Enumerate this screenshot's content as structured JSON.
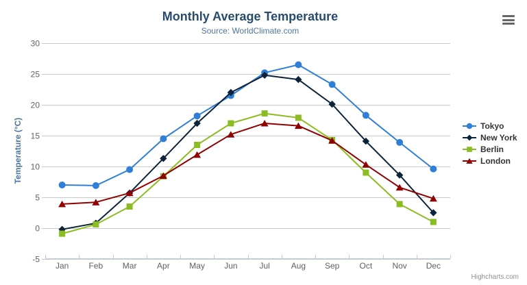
{
  "header": {
    "title": "Monthly Average Temperature",
    "subtitle": "Source: WorldClimate.com"
  },
  "export_menu": {
    "icon": "hamburger-menu-icon"
  },
  "credits": {
    "label": "Highcharts.com"
  },
  "chart_data": {
    "type": "line",
    "title": "Monthly Average Temperature",
    "subtitle": "Source: WorldClimate.com",
    "categories": [
      "Jan",
      "Feb",
      "Mar",
      "Apr",
      "May",
      "Jun",
      "Jul",
      "Aug",
      "Sep",
      "Oct",
      "Nov",
      "Dec"
    ],
    "series": [
      {
        "name": "Tokyo",
        "color": "#2f7ed8",
        "marker": "circle",
        "values": [
          7.0,
          6.9,
          9.5,
          14.5,
          18.2,
          21.5,
          25.2,
          26.5,
          23.3,
          18.3,
          13.9,
          9.6
        ]
      },
      {
        "name": "New York",
        "color": "#0d233a",
        "marker": "diamond",
        "values": [
          -0.2,
          0.8,
          5.7,
          11.3,
          17.0,
          22.0,
          24.8,
          24.1,
          20.1,
          14.1,
          8.6,
          2.5
        ]
      },
      {
        "name": "Berlin",
        "color": "#8bbc21",
        "marker": "square",
        "values": [
          -0.9,
          0.6,
          3.5,
          8.4,
          13.5,
          17.0,
          18.6,
          17.9,
          14.3,
          9.0,
          3.9,
          1.0
        ]
      },
      {
        "name": "London",
        "color": "#910000",
        "marker": "triangle",
        "values": [
          3.9,
          4.2,
          5.7,
          8.5,
          11.9,
          15.2,
          17.0,
          16.6,
          14.2,
          10.3,
          6.6,
          4.8
        ]
      }
    ],
    "xlabel": "",
    "ylabel": "Temperature (°C)",
    "ylim": [
      -5,
      30
    ],
    "yticks": [
      -5,
      0,
      5,
      10,
      15,
      20,
      25,
      30
    ],
    "grid": true,
    "legend_position": "right",
    "colors": {
      "grid_line": "#c8c8c8",
      "axis_line": "#c0d0e0",
      "tick_label": "#606060",
      "title": "#274b6d",
      "subtitle": "#4d759e",
      "legend_text": "#333333"
    }
  }
}
